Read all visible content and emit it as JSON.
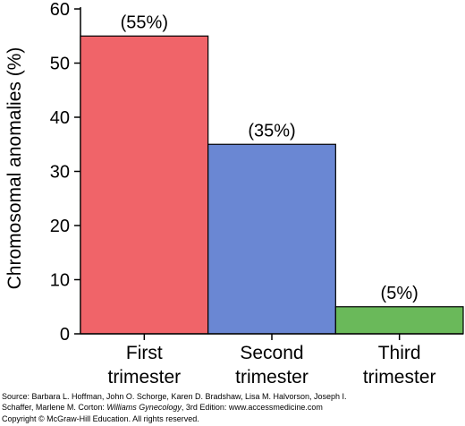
{
  "chart_data": {
    "type": "bar",
    "categories": [
      [
        "First",
        "trimester"
      ],
      [
        "Second",
        "trimester"
      ],
      [
        "Third",
        "trimester"
      ]
    ],
    "values": [
      55,
      35,
      5
    ],
    "data_labels": [
      "(55%)",
      "(35%)",
      "(5%)"
    ],
    "colors": [
      "#f06469",
      "#6a87d3",
      "#6ab95a"
    ],
    "ylabel": "Chromosomal anomalies (%)",
    "xlabel": "",
    "title": "",
    "ylim": [
      0,
      60
    ],
    "yticks": [
      0,
      10,
      20,
      30,
      40,
      50,
      60
    ],
    "grid": false,
    "legend": "none"
  },
  "source": {
    "line1": "Source: Barbara L. Hoffman, John O. Schorge, Karen D. Bradshaw, Lisa M. Halvorson, Joseph I.",
    "line2_prefix": "Schaffer, Marlene M. Corton: ",
    "book_title": "Williams Gynecology",
    "line2_suffix": ", 3rd Edition: www.accessmedicine.com",
    "line3": "Copyright © McGraw-Hill Education. All rights reserved."
  }
}
